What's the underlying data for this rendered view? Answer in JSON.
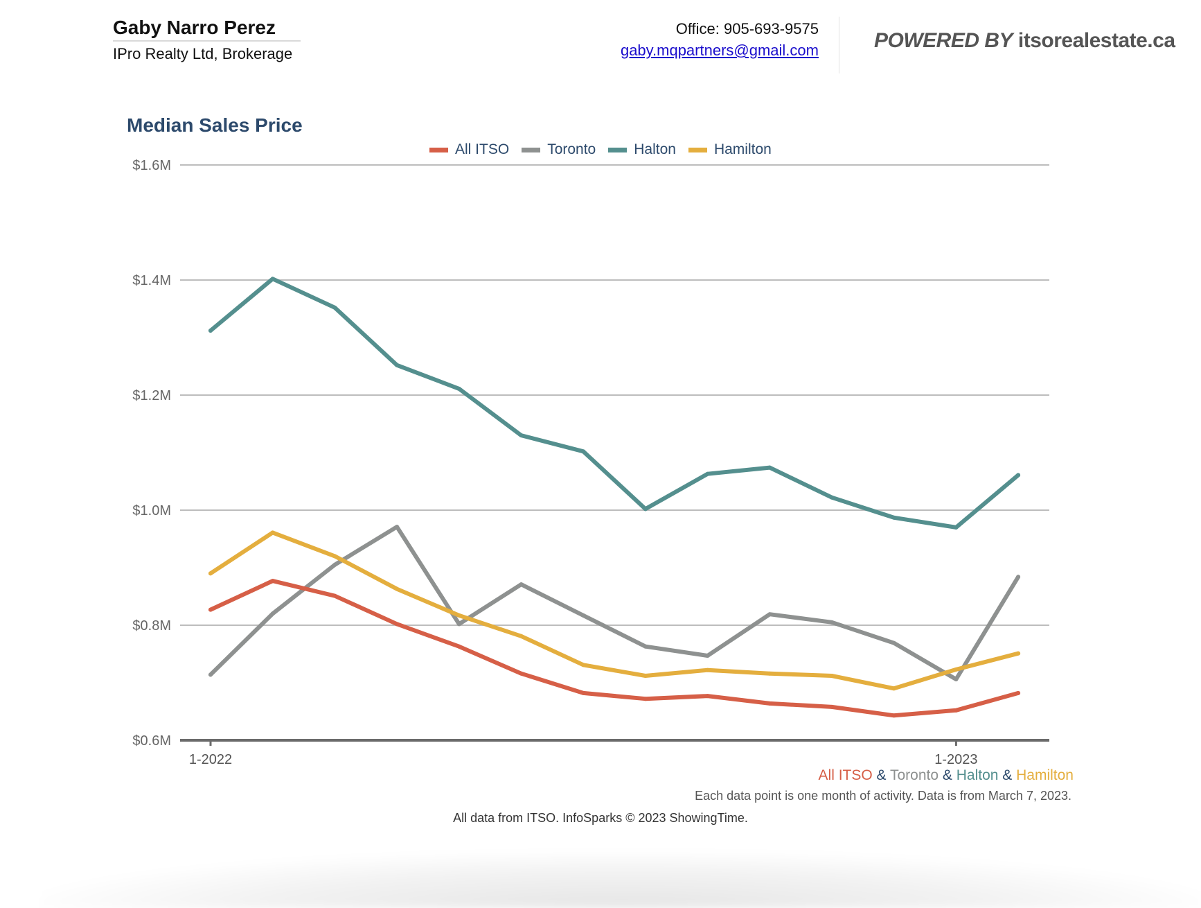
{
  "header": {
    "agent_name": "Gaby Narro Perez",
    "brokerage": "IPro Realty Ltd, Brokerage",
    "office_phone": "Office: 905-693-9575",
    "email": "gaby.mqpartners@gmail.com",
    "powered_by_prefix": "POWERED BY",
    "powered_by_site": "itsorealestate.ca"
  },
  "footer": {
    "series_caption": [
      {
        "text": "All ITSO",
        "color": "#D65F47"
      },
      {
        "text": " & ",
        "color": "#2d4a6c"
      },
      {
        "text": "Toronto",
        "color": "#8E9190"
      },
      {
        "text": " & ",
        "color": "#2d4a6c"
      },
      {
        "text": "Halton",
        "color": "#548F8E"
      },
      {
        "text": " & ",
        "color": "#2d4a6c"
      },
      {
        "text": "Hamilton",
        "color": "#E4AE3E"
      }
    ],
    "note": "Each data point is one month of activity. Data is from March 7, 2023.",
    "credit": "All data from ITSO. InfoSparks © 2023 ShowingTime."
  },
  "chart_data": {
    "type": "line",
    "title": "Median Sales Price",
    "xlabel": "",
    "ylabel": "",
    "x": [
      "1-2022",
      "2-2022",
      "3-2022",
      "4-2022",
      "5-2022",
      "6-2022",
      "7-2022",
      "8-2022",
      "9-2022",
      "10-2022",
      "11-2022",
      "12-2022",
      "1-2023",
      "2-2023"
    ],
    "x_tick_labels": [
      {
        "index": 0,
        "label": "1-2022"
      },
      {
        "index": 12,
        "label": "1-2023"
      }
    ],
    "ylim": [
      0.6,
      1.6
    ],
    "y_ticks": [
      0.6,
      0.8,
      1.0,
      1.2,
      1.4,
      1.6
    ],
    "y_tick_labels": [
      "$0.6M",
      "$0.8M",
      "$1.0M",
      "$1.2M",
      "$1.4M",
      "$1.6M"
    ],
    "y_units": "millions CAD",
    "grid": true,
    "legend_position": "top-center",
    "series": [
      {
        "name": "All ITSO",
        "color": "#D65F47",
        "values": [
          0.827,
          0.877,
          0.851,
          0.802,
          0.763,
          0.716,
          0.682,
          0.672,
          0.677,
          0.664,
          0.658,
          0.643,
          0.652,
          0.682
        ]
      },
      {
        "name": "Toronto",
        "color": "#8E9190",
        "values": [
          0.714,
          0.82,
          0.905,
          0.971,
          0.802,
          0.871,
          0.817,
          0.763,
          0.747,
          0.819,
          0.805,
          0.769,
          0.706,
          0.884
        ]
      },
      {
        "name": "Halton",
        "color": "#548F8E",
        "values": [
          1.312,
          1.402,
          1.352,
          1.252,
          1.211,
          1.13,
          1.102,
          1.002,
          1.063,
          1.074,
          1.022,
          0.987,
          0.97,
          1.061
        ]
      },
      {
        "name": "Hamilton",
        "color": "#E4AE3E",
        "values": [
          0.89,
          0.961,
          0.92,
          0.863,
          0.817,
          0.781,
          0.731,
          0.712,
          0.722,
          0.716,
          0.712,
          0.69,
          0.723,
          0.751
        ]
      }
    ]
  }
}
